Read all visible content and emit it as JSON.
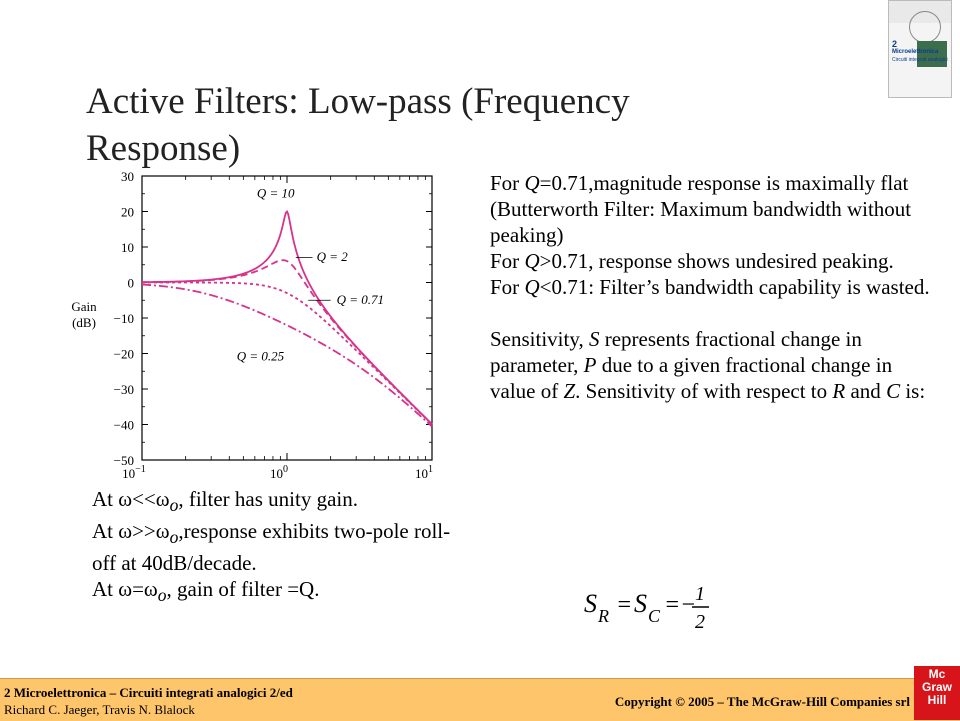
{
  "slide": {
    "title_line1": "Active Filters: Low-pass (Frequency",
    "title_line2": "Response)"
  },
  "book_cover": {
    "number": "2",
    "title": "Microelettronica",
    "subtitle": "Circuiti integrati analogici"
  },
  "chart_data": {
    "type": "line",
    "xscale": "log",
    "xlim": [
      0.1,
      10
    ],
    "ylim": [
      -50,
      30
    ],
    "ylabel": "Gain\n(dB)",
    "xlabel": "",
    "y_ticks": [
      "30",
      "20",
      "10",
      "0",
      "−10",
      "−20",
      "−30",
      "−40",
      "−50"
    ],
    "x_tick_labels": [
      {
        "base": "10",
        "exp": "−1"
      },
      {
        "base": "10",
        "exp": "0"
      },
      {
        "base": "10",
        "exp": "1"
      }
    ],
    "color": "#d6338a",
    "series": [
      {
        "name": "Q = 10",
        "Q": 10,
        "style": "solid"
      },
      {
        "name": "Q = 2",
        "Q": 2,
        "style": "dashed"
      },
      {
        "name": "Q = 0.71",
        "Q": 0.71,
        "style": "dotted"
      },
      {
        "name": "Q = 0.25",
        "Q": 0.25,
        "style": "dashdot"
      }
    ]
  },
  "right_text": {
    "p1": "For Q=0.71,magnitude response is maximally flat (Butterworth Filter: Maximum bandwidth without peaking)",
    "p2": "For Q>0.71, response shows undesired peaking.",
    "p3": "For Q<0.71: Filter’s bandwidth capability is wasted.",
    "p4": "Sensitivity, S represents fractional change in parameter, P due to a given fractional change in value of Z. Sensitivity of  with respect to R and C is:"
  },
  "left_text": {
    "p1": "At ω<<ωo, filter has unity gain.",
    "p2": "At ω>>ωo,response exhibits two-pole roll-off at 40dB/decade.",
    "p3": "At ω=ωo, gain of filter =Q."
  },
  "formula": {
    "text": "S_R = S_C = −1/2"
  },
  "footer": {
    "line1": "2 Microelettronica – Circuiti integrati analogici 2/ed",
    "line2": "Richard C. Jaeger, Travis N. Blalock",
    "copyright": "Copyright © 2005 – The McGraw-Hill Companies srl",
    "logo_lines": [
      "Mc",
      "Graw",
      "Hill"
    ]
  },
  "colors": {
    "footer_bg": "#fec56a",
    "curve": "#d6338a",
    "logo_red": "#d7141a"
  }
}
